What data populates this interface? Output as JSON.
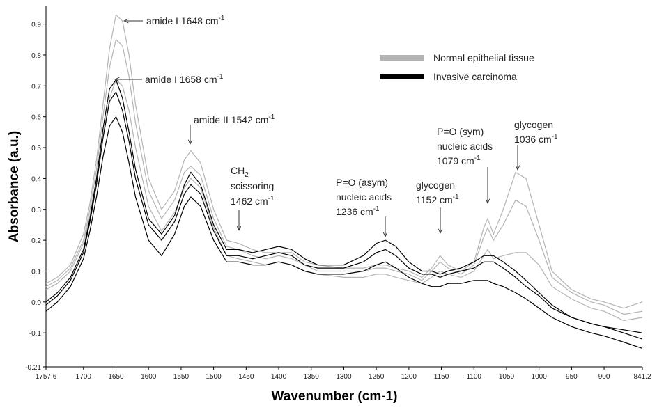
{
  "chart_data": {
    "type": "line",
    "xlabel": "Wavenumber (cm-1)",
    "ylabel": "Absorbance (a.u.)",
    "xlim": [
      1757.6,
      841.2
    ],
    "xticks": [
      1757.6,
      1700,
      1650,
      1600,
      1550,
      1500,
      1450,
      1400,
      1350,
      1300,
      1250,
      1200,
      1150,
      1100,
      1050,
      1000,
      950,
      900,
      841.2
    ],
    "ylim": [
      -0.21,
      0.96
    ],
    "yticks": [
      -0.21,
      -0.1,
      {
        "value": 0,
        "label": "0.0"
      },
      0.1,
      0.2,
      0.3,
      0.4,
      0.5,
      0.6,
      0.7,
      0.8,
      0.9
    ],
    "x": [
      1757.6,
      1740,
      1720,
      1700,
      1690,
      1680,
      1670,
      1660,
      1650,
      1640,
      1630,
      1620,
      1600,
      1580,
      1560,
      1545,
      1535,
      1520,
      1500,
      1480,
      1462,
      1440,
      1420,
      1400,
      1380,
      1360,
      1340,
      1300,
      1270,
      1250,
      1236,
      1220,
      1200,
      1180,
      1165,
      1152,
      1140,
      1120,
      1100,
      1085,
      1079,
      1070,
      1055,
      1036,
      1020,
      1000,
      980,
      950,
      920,
      900,
      870,
      841.2
    ],
    "series": [
      {
        "name": "Normal epithelial tissue",
        "color": "#b4b4b4",
        "spectra": [
          [
            0.06,
            0.08,
            0.12,
            0.22,
            0.32,
            0.46,
            0.64,
            0.82,
            0.93,
            0.91,
            0.8,
            0.64,
            0.4,
            0.3,
            0.36,
            0.46,
            0.49,
            0.45,
            0.3,
            0.2,
            0.19,
            0.17,
            0.16,
            0.16,
            0.16,
            0.13,
            0.12,
            0.11,
            0.11,
            0.12,
            0.12,
            0.11,
            0.1,
            0.08,
            0.11,
            0.15,
            0.12,
            0.1,
            0.13,
            0.24,
            0.27,
            0.22,
            0.3,
            0.42,
            0.4,
            0.25,
            0.1,
            0.04,
            0.01,
            0,
            -0.02,
            0
          ],
          [
            0.05,
            0.07,
            0.11,
            0.2,
            0.3,
            0.43,
            0.6,
            0.76,
            0.85,
            0.83,
            0.73,
            0.58,
            0.36,
            0.27,
            0.33,
            0.42,
            0.44,
            0.41,
            0.27,
            0.18,
            0.17,
            0.15,
            0.14,
            0.15,
            0.14,
            0.12,
            0.1,
            0.1,
            0.1,
            0.11,
            0.11,
            0.1,
            0.09,
            0.07,
            0.1,
            0.13,
            0.11,
            0.09,
            0.12,
            0.21,
            0.24,
            0.2,
            0.25,
            0.33,
            0.31,
            0.2,
            0.08,
            0.03,
            0,
            -0.01,
            -0.04,
            -0.03
          ],
          [
            0.04,
            0.06,
            0.1,
            0.19,
            0.28,
            0.4,
            0.54,
            0.66,
            0.72,
            0.7,
            0.62,
            0.5,
            0.31,
            0.23,
            0.29,
            0.37,
            0.4,
            0.37,
            0.24,
            0.15,
            0.14,
            0.13,
            0.12,
            0.13,
            0.12,
            0.1,
            0.09,
            0.08,
            0.08,
            0.09,
            0.09,
            0.08,
            0.07,
            0.06,
            0.08,
            0.1,
            0.09,
            0.08,
            0.1,
            0.15,
            0.17,
            0.14,
            0.15,
            0.16,
            0.16,
            0.12,
            0.05,
            0.01,
            -0.02,
            -0.03,
            -0.06,
            -0.05
          ]
        ]
      },
      {
        "name": "Invasive carcinoma",
        "color": "#000000",
        "spectra": [
          [
            0.0,
            0.03,
            0.08,
            0.17,
            0.27,
            0.4,
            0.56,
            0.69,
            0.72,
            0.66,
            0.55,
            0.43,
            0.27,
            0.22,
            0.28,
            0.38,
            0.42,
            0.38,
            0.25,
            0.17,
            0.17,
            0.16,
            0.17,
            0.18,
            0.17,
            0.14,
            0.12,
            0.12,
            0.15,
            0.19,
            0.2,
            0.18,
            0.13,
            0.1,
            0.1,
            0.09,
            0.1,
            0.11,
            0.13,
            0.15,
            0.15,
            0.15,
            0.13,
            0.1,
            0.07,
            0.03,
            -0.01,
            -0.05,
            -0.07,
            -0.08,
            -0.1,
            -0.12
          ],
          [
            -0.01,
            0.02,
            0.07,
            0.16,
            0.26,
            0.38,
            0.53,
            0.65,
            0.68,
            0.62,
            0.52,
            0.4,
            0.25,
            0.2,
            0.26,
            0.35,
            0.38,
            0.35,
            0.23,
            0.15,
            0.15,
            0.14,
            0.15,
            0.16,
            0.15,
            0.12,
            0.11,
            0.11,
            0.13,
            0.16,
            0.17,
            0.15,
            0.11,
            0.09,
            0.09,
            0.08,
            0.09,
            0.1,
            0.11,
            0.13,
            0.13,
            0.13,
            0.11,
            0.08,
            0.05,
            0.02,
            -0.02,
            -0.05,
            -0.07,
            -0.08,
            -0.09,
            -0.1
          ],
          [
            -0.03,
            0.0,
            0.05,
            0.14,
            0.23,
            0.34,
            0.47,
            0.57,
            0.6,
            0.55,
            0.45,
            0.34,
            0.2,
            0.15,
            0.22,
            0.31,
            0.34,
            0.31,
            0.2,
            0.13,
            0.13,
            0.12,
            0.12,
            0.13,
            0.12,
            0.1,
            0.09,
            0.09,
            0.1,
            0.12,
            0.13,
            0.11,
            0.08,
            0.06,
            0.05,
            0.05,
            0.06,
            0.06,
            0.07,
            0.07,
            0.07,
            0.06,
            0.05,
            0.03,
            0.01,
            -0.02,
            -0.05,
            -0.08,
            -0.1,
            -0.11,
            -0.13,
            -0.15
          ]
        ]
      }
    ],
    "annotations": [
      {
        "lines": [
          [
            {
              "text": "amide I 1648 cm"
            },
            {
              "sup": "-1"
            }
          ]
        ]
      },
      {
        "lines": [
          [
            {
              "text": "amide I 1658 cm"
            },
            {
              "sup": "-1"
            }
          ]
        ]
      },
      {
        "lines": [
          [
            {
              "text": "amide II 1542 cm"
            },
            {
              "sup": "-1"
            }
          ]
        ]
      },
      {
        "lines": [
          [
            {
              "text": "CH"
            },
            {
              "sub": "2"
            }
          ],
          [
            {
              "text": "scissoring"
            }
          ],
          [
            {
              "text": "1462 cm"
            },
            {
              "sup": "-1"
            }
          ]
        ]
      },
      {
        "lines": [
          [
            {
              "text": "P=O (asym)"
            }
          ],
          [
            {
              "text": "nucleic acids"
            }
          ],
          [
            {
              "text": "1236 cm"
            },
            {
              "sup": "-1"
            }
          ]
        ]
      },
      {
        "lines": [
          [
            {
              "text": "glycogen"
            }
          ],
          [
            {
              "text": "1152 cm"
            },
            {
              "sup": "-1"
            }
          ]
        ]
      },
      {
        "lines": [
          [
            {
              "text": "P=O (sym)"
            }
          ],
          [
            {
              "text": "nucleic acids"
            }
          ],
          [
            {
              "text": "1079 cm"
            },
            {
              "sup": "-1"
            }
          ]
        ]
      },
      {
        "lines": [
          [
            {
              "text": "glycogen"
            }
          ],
          [
            {
              "text": "1036 cm"
            },
            {
              "sup": "-1"
            }
          ]
        ]
      }
    ]
  }
}
